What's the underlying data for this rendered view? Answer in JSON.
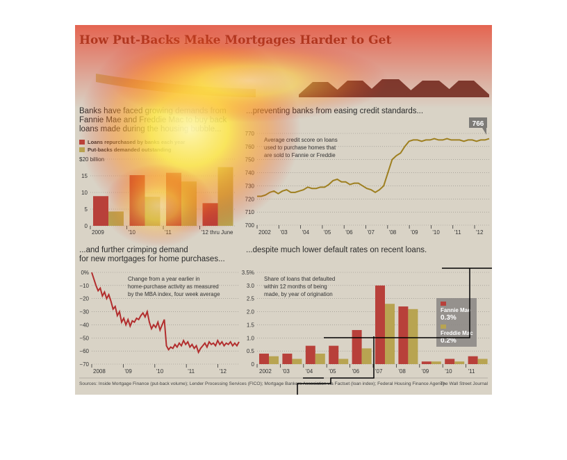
{
  "title": "How Put-Backs Make Mortgages Harder to Get",
  "sources": "Sources: Inside Mortgage Finance (put-back volume); Lender Processing Services (FICO); Mortgage Bankers Association via Factset (loan index); Federal Housing Finance Agency",
  "credit": "The Wall Street Journal",
  "colors": {
    "red": "#b8403a",
    "olive": "#b8a451",
    "line_gold": "#9e7f1f",
    "line_red": "#b22d2d",
    "grid": "#8d8a82"
  },
  "chart_data": [
    {
      "type": "bar",
      "headline": "Banks have faced growing demands from Fannie Mae and Freddie Mac to buy back loans made during the housing bubble...",
      "headline_lines": [
        "Banks have faced growing demands from",
        "Fannie Mae and Freddie Mac to buy back",
        "loans made during the housing bubble..."
      ],
      "legend": [
        "Loans repurchased by banks each year",
        "Put-backs demanded outstanding"
      ],
      "yunit_label": "$20 billion",
      "ylim": [
        0,
        20
      ],
      "yticks": [
        0,
        5,
        10,
        15,
        20
      ],
      "ytick_labels": [
        "0",
        "5",
        "10",
        "15",
        "$20 billion"
      ],
      "categories": [
        "2009",
        "'10",
        "'11",
        "'12 thru June"
      ],
      "series": [
        {
          "name": "Loans repurchased by banks each year",
          "values": [
            8.9,
            15.2,
            15.9,
            6.8
          ]
        },
        {
          "name": "Put-backs demanded outstanding",
          "values": [
            4.3,
            8.7,
            13.3,
            17.6
          ]
        }
      ]
    },
    {
      "type": "line",
      "headline": "...preventing banks from easing credit standards...",
      "annotation": [
        "Average credit score on loans",
        "used to purchase homes that",
        "are sold to Fannie or Freddie"
      ],
      "callout": "766",
      "ylim": [
        700,
        770
      ],
      "yticks": [
        700,
        710,
        720,
        730,
        740,
        750,
        760,
        770
      ],
      "xtick_labels": [
        "2002",
        "'03",
        "'04",
        "'05",
        "'06",
        "'07",
        "'08",
        "'09",
        "'10",
        "'11",
        "'12"
      ],
      "x_start": 2002,
      "x_end": 2012.67,
      "values": [
        722,
        722,
        723,
        725,
        726,
        724,
        726,
        727,
        725,
        725,
        726,
        727,
        729,
        728,
        728,
        729,
        729,
        731,
        734,
        735,
        733,
        733,
        731,
        732,
        732,
        730,
        728,
        727,
        725,
        727,
        730,
        740,
        750,
        753,
        755,
        760,
        764,
        765,
        765,
        764,
        765,
        765,
        766,
        765,
        765,
        766,
        765,
        765,
        765,
        764,
        765,
        765,
        764,
        765,
        765,
        766
      ]
    },
    {
      "type": "line",
      "headline": "...and further crimping demand for new mortgages for home purchases...",
      "headline_lines": [
        "...and further crimping demand",
        "for new mortgages for home purchases..."
      ],
      "annotation": [
        "Change from a year earlier in",
        "home-purchase activity as measured",
        "by the MBA index, four week average"
      ],
      "ylim": [
        -70,
        0
      ],
      "yticks": [
        0,
        -10,
        -20,
        -30,
        -40,
        -50,
        -60,
        -70
      ],
      "ytick_labels": [
        "0%",
        "−10",
        "−20",
        "−30",
        "−40",
        "−50",
        "−60",
        "−70"
      ],
      "xtick_labels": [
        "2008",
        "'09",
        "'10",
        "'11",
        "'12"
      ],
      "x_start": 2008,
      "x_end": 2012.67,
      "values": [
        0,
        -5,
        -10,
        -14,
        -12,
        -18,
        -15,
        -20,
        -17,
        -22,
        -28,
        -26,
        -33,
        -30,
        -38,
        -35,
        -40,
        -36,
        -41,
        -37,
        -38,
        -35,
        -36,
        -33,
        -31,
        -34,
        -30,
        -38,
        -43,
        -40,
        -42,
        -38,
        -44,
        -40,
        -36,
        -56,
        -59,
        -57,
        -58,
        -55,
        -57,
        -54,
        -56,
        -52,
        -55,
        -53,
        -57,
        -55,
        -58,
        -56,
        -61,
        -58,
        -56,
        -54,
        -57,
        -53,
        -55,
        -54,
        -56,
        -52,
        -55,
        -53,
        -56,
        -54,
        -55,
        -53,
        -56,
        -54,
        -56,
        -53
      ]
    },
    {
      "type": "bar",
      "headline": "...despite much lower default rates on recent loans.",
      "annotation": [
        "Share of loans that defaulted",
        "within 12 months of being",
        "made, by year of origination"
      ],
      "ylim": [
        0,
        3.5
      ],
      "yticks": [
        0,
        0.5,
        1.0,
        1.5,
        2.0,
        2.5,
        3.0,
        3.5
      ],
      "ytick_labels": [
        "0",
        "0.5",
        "1.0",
        "1.5",
        "2.0",
        "2.5",
        "3.0",
        "3.5%"
      ],
      "categories": [
        "2002",
        "'03",
        "'04",
        "'05",
        "'06",
        "'07",
        "'08",
        "'09",
        "'10",
        "'11"
      ],
      "series": [
        {
          "name": "Fannie Mae",
          "values": [
            0.4,
            0.4,
            0.7,
            0.7,
            1.3,
            3.0,
            2.2,
            0.1,
            0.2,
            0.3
          ]
        },
        {
          "name": "Freddie Mac",
          "values": [
            0.3,
            0.2,
            0.4,
            0.2,
            0.6,
            2.3,
            2.1,
            0.1,
            0.1,
            0.2
          ]
        }
      ],
      "tooltip": {
        "label1": "Fannie Mae",
        "value1": "0.3%",
        "label2": "Freddie Mac",
        "value2": "0.2%"
      }
    }
  ]
}
